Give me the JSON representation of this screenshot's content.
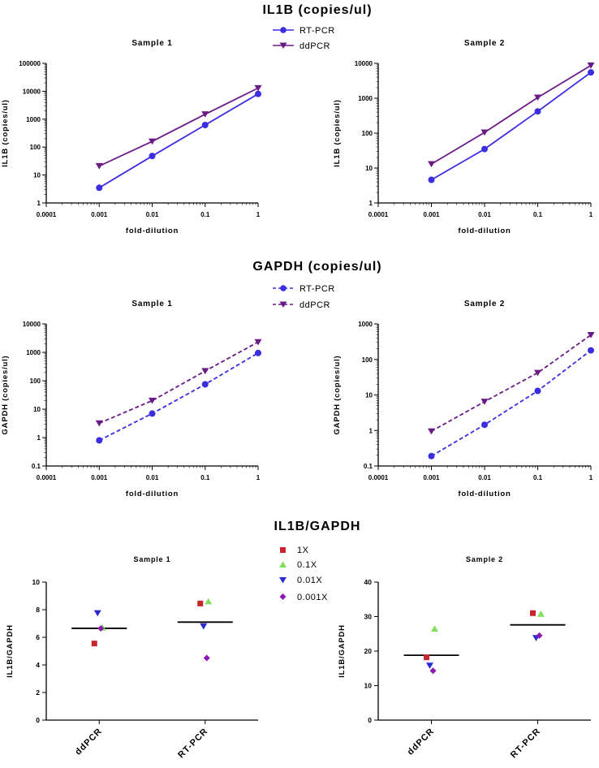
{
  "sections": {
    "il1b_title": "IL1B (copies/ul)",
    "gapdh_title": "GAPDH (copies/ul)",
    "ratio_title": "IL1B/GAPDH"
  },
  "legends": {
    "il1b": [
      "RT-PCR",
      "ddPCR"
    ],
    "gapdh": [
      "RT-PCR",
      "ddPCR"
    ],
    "ratio": [
      "1X",
      "0.1X",
      "0.01X",
      "0.001X"
    ]
  },
  "colors": {
    "rtpcr": "#3b2de0",
    "ddpcr": "#6a1a86",
    "dose_1x": "#c8262f",
    "dose_0_1x": "#7fe05a",
    "dose_0_01x": "#2a2ad0",
    "dose_0_001x": "#8a1ab0"
  },
  "chart_data": [
    {
      "type": "line",
      "title": "Sample 1",
      "xlabel": "fold-dilution",
      "ylabel": "IL1B (copies/ul)",
      "xscale": "log",
      "yscale": "log",
      "xlim": [
        0.0001,
        1
      ],
      "ylim": [
        1,
        100000
      ],
      "xticks": [
        "0.0001",
        "0.001",
        "0.01",
        "0.1",
        "1"
      ],
      "yticks": [
        "1",
        "10",
        "100",
        "1000",
        "10000",
        "100000"
      ],
      "line_style": "solid",
      "x": [
        0.001,
        0.01,
        0.1,
        1
      ],
      "series": [
        {
          "name": "RT-PCR",
          "marker": "circle",
          "values": [
            3.5,
            48,
            620,
            8000
          ]
        },
        {
          "name": "ddPCR",
          "marker": "triangle-down",
          "values": [
            21,
            160,
            1500,
            13000
          ]
        }
      ]
    },
    {
      "type": "line",
      "title": "Sample 2",
      "xlabel": "fold-dilution",
      "ylabel": "IL1B (copies/ul)",
      "xscale": "log",
      "yscale": "log",
      "xlim": [
        0.0001,
        1
      ],
      "ylim": [
        1,
        10000
      ],
      "xticks": [
        "0.0001",
        "0.001",
        "0.01",
        "0.1",
        "1"
      ],
      "yticks": [
        "1",
        "10",
        "100",
        "1000",
        "10000"
      ],
      "line_style": "solid",
      "x": [
        0.001,
        0.01,
        0.1,
        1
      ],
      "series": [
        {
          "name": "RT-PCR",
          "marker": "circle",
          "values": [
            4.6,
            35,
            420,
            5500
          ]
        },
        {
          "name": "ddPCR",
          "marker": "triangle-down",
          "values": [
            13,
            105,
            1050,
            8700
          ]
        }
      ]
    },
    {
      "type": "line",
      "title": "Sample 1",
      "xlabel": "fold-dilution",
      "ylabel": "GAPDH (copies/ul)",
      "xscale": "log",
      "yscale": "log",
      "xlim": [
        0.0001,
        1
      ],
      "ylim": [
        0.1,
        10000
      ],
      "xticks": [
        "0.0001",
        "0.001",
        "0.01",
        "0.1",
        "1"
      ],
      "yticks": [
        "0.1",
        "1",
        "10",
        "100",
        "1000",
        "10000"
      ],
      "line_style": "dashed",
      "x": [
        0.001,
        0.01,
        0.1,
        1
      ],
      "series": [
        {
          "name": "RT-PCR",
          "marker": "circle",
          "values": [
            0.8,
            7,
            75,
            950
          ]
        },
        {
          "name": "ddPCR",
          "marker": "triangle-down",
          "values": [
            3.2,
            20,
            220,
            2300
          ]
        }
      ]
    },
    {
      "type": "line",
      "title": "Sample 2",
      "xlabel": "fold-dilution",
      "ylabel": "GAPDH (copies/ul)",
      "xscale": "log",
      "yscale": "log",
      "xlim": [
        0.0001,
        1
      ],
      "ylim": [
        0.1,
        1000
      ],
      "xticks": [
        "0.0001",
        "0.001",
        "0.01",
        "0.1",
        "1"
      ],
      "yticks": [
        "0.1",
        "1",
        "10",
        "100",
        "1000"
      ],
      "line_style": "dashed",
      "x": [
        0.001,
        0.01,
        0.1,
        1
      ],
      "series": [
        {
          "name": "RT-PCR",
          "marker": "circle",
          "values": [
            0.19,
            1.45,
            13,
            180
          ]
        },
        {
          "name": "ddPCR",
          "marker": "triangle-down",
          "values": [
            0.95,
            6.5,
            42,
            490
          ]
        }
      ]
    },
    {
      "type": "scatter",
      "title": "Sample 1",
      "ylabel": "IL1B/GAPDH",
      "categories": [
        "ddPCR",
        "RT-PCR"
      ],
      "ylim": [
        0,
        10
      ],
      "yticks": [
        "0",
        "2",
        "4",
        "6",
        "8",
        "10"
      ],
      "means": [
        6.65,
        7.1
      ],
      "series": [
        {
          "name": "1X",
          "marker": "square",
          "values": [
            5.55,
            8.45
          ]
        },
        {
          "name": "0.1X",
          "marker": "triangle-up",
          "values": [
            6.7,
            8.6
          ]
        },
        {
          "name": "0.01X",
          "marker": "triangle-down",
          "values": [
            7.75,
            6.8
          ]
        },
        {
          "name": "0.001X",
          "marker": "diamond",
          "values": [
            6.65,
            4.5
          ]
        }
      ]
    },
    {
      "type": "scatter",
      "title": "Sample 2",
      "ylabel": "IL1B/GAPDH",
      "categories": [
        "ddPCR",
        "RT-PCR"
      ],
      "ylim": [
        0,
        40
      ],
      "yticks": [
        "0",
        "10",
        "20",
        "30",
        "40"
      ],
      "means": [
        18.8,
        27.6
      ],
      "series": [
        {
          "name": "1X",
          "marker": "square",
          "values": [
            18.2,
            31
          ]
        },
        {
          "name": "0.1X",
          "marker": "triangle-up",
          "values": [
            26.5,
            30.8
          ]
        },
        {
          "name": "0.01X",
          "marker": "triangle-down",
          "values": [
            15.8,
            23.8
          ]
        },
        {
          "name": "0.001X",
          "marker": "diamond",
          "values": [
            14.3,
            24.5
          ]
        }
      ]
    }
  ]
}
